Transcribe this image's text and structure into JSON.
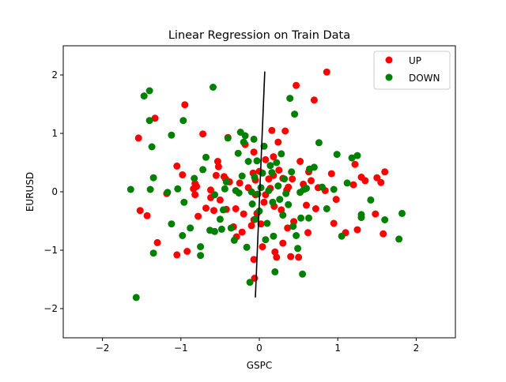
{
  "chart_data": {
    "type": "scatter",
    "title": "Linear Regression on Train Data",
    "xlabel": "GSPC",
    "ylabel": "EURUSD",
    "xlim": [
      -2.5,
      2.5
    ],
    "ylim": [
      -2.5,
      2.5
    ],
    "xticks": [
      -2,
      -1,
      0,
      1,
      2
    ],
    "yticks": [
      -2,
      -1,
      0,
      1,
      2
    ],
    "xtick_labels": [
      "−2",
      "−1",
      "0",
      "1",
      "2"
    ],
    "ytick_labels": [
      "−2",
      "−1",
      "0",
      "1",
      "2"
    ],
    "grid": false,
    "legend_position": "top-right",
    "series": [
      {
        "name": "UP",
        "color": "#ff0000",
        "points": [
          [
            -1.54,
            0.92
          ],
          [
            -1.52,
            -0.32
          ],
          [
            -1.43,
            -0.41
          ],
          [
            -1.33,
            1.26
          ],
          [
            -1.3,
            -0.87
          ],
          [
            -1.18,
            -0.03
          ],
          [
            -1.05,
            -1.08
          ],
          [
            -1.05,
            0.44
          ],
          [
            -0.98,
            0.29
          ],
          [
            -0.95,
            1.49
          ],
          [
            -0.92,
            -1.02
          ],
          [
            -0.82,
            0.14
          ],
          [
            -0.82,
            -0.05
          ],
          [
            -0.8,
            0.09
          ],
          [
            -0.78,
            -0.42
          ],
          [
            -0.72,
            0.99
          ],
          [
            -0.68,
            -0.28
          ],
          [
            -0.62,
            -0.1
          ],
          [
            -0.58,
            -0.32
          ],
          [
            -0.55,
            0.28
          ],
          [
            -0.53,
            0.52
          ],
          [
            -0.52,
            0.43
          ],
          [
            -0.5,
            -0.14
          ],
          [
            -0.45,
            0.26
          ],
          [
            -0.43,
            0.22
          ],
          [
            -0.4,
            0.93
          ],
          [
            -0.38,
            0.17
          ],
          [
            -0.33,
            -0.6
          ],
          [
            -0.3,
            -0.29
          ],
          [
            -0.25,
            0.15
          ],
          [
            -0.22,
            -0.69
          ],
          [
            -0.2,
            -0.38
          ],
          [
            -0.18,
            0.81
          ],
          [
            -0.14,
            0.07
          ],
          [
            -0.1,
            -0.58
          ],
          [
            -0.08,
            0.32
          ],
          [
            -0.07,
            0.68
          ],
          [
            -0.05,
            0.2
          ],
          [
            -0.05,
            -0.05
          ],
          [
            -0.07,
            -0.48
          ],
          [
            -0.07,
            -1.16
          ],
          [
            -0.06,
            -1.48
          ],
          [
            -0.03,
            -0.37
          ],
          [
            0.0,
            0.35
          ],
          [
            0.02,
            -0.55
          ],
          [
            0.04,
            -0.94
          ],
          [
            0.08,
            0.55
          ],
          [
            0.12,
            0.22
          ],
          [
            0.14,
            0.06
          ],
          [
            0.16,
            1.05
          ],
          [
            0.18,
            0.28
          ],
          [
            0.19,
            -0.25
          ],
          [
            0.2,
            -1.03
          ],
          [
            0.22,
            -1.12
          ],
          [
            0.24,
            0.85
          ],
          [
            0.28,
            -0.31
          ],
          [
            0.3,
            -0.88
          ],
          [
            0.33,
            1.04
          ],
          [
            0.35,
            0.03
          ],
          [
            0.36,
            -0.62
          ],
          [
            0.37,
            0.08
          ],
          [
            0.42,
            0.22
          ],
          [
            0.44,
            -0.51
          ],
          [
            0.47,
            1.82
          ],
          [
            0.5,
            -1.12
          ],
          [
            0.52,
            0.52
          ],
          [
            0.56,
            0.13
          ],
          [
            0.6,
            -0.23
          ],
          [
            0.62,
            -0.7
          ],
          [
            0.66,
            0.19
          ],
          [
            0.7,
            1.57
          ],
          [
            0.72,
            -0.29
          ],
          [
            0.75,
            0.07
          ],
          [
            0.84,
            0.02
          ],
          [
            0.86,
            2.05
          ],
          [
            0.92,
            0.31
          ],
          [
            0.95,
            -0.54
          ],
          [
            0.98,
            -0.13
          ],
          [
            1.1,
            -0.7
          ],
          [
            1.2,
            0.12
          ],
          [
            1.22,
            0.47
          ],
          [
            1.25,
            -0.65
          ],
          [
            1.3,
            0.25
          ],
          [
            1.35,
            0.19
          ],
          [
            1.48,
            -0.38
          ],
          [
            1.5,
            0.24
          ],
          [
            1.55,
            0.16
          ],
          [
            1.58,
            -0.72
          ],
          [
            1.6,
            0.34
          ],
          [
            -0.29,
            -0.77
          ],
          [
            0.18,
            0.6
          ],
          [
            0.08,
            -0.05
          ],
          [
            -0.62,
            0.03
          ],
          [
            0.25,
            0.37
          ],
          [
            0.63,
            0.34
          ],
          [
            -0.84,
            0.05
          ],
          [
            0.4,
            -1.11
          ],
          [
            0.06,
            -0.18
          ],
          [
            0.3,
            0.23
          ],
          [
            -0.42,
            -0.3
          ]
        ]
      },
      {
        "name": "DOWN",
        "color": "#008000",
        "points": [
          [
            -1.64,
            0.04
          ],
          [
            -1.57,
            -1.81
          ],
          [
            -1.47,
            1.64
          ],
          [
            -1.4,
            1.22
          ],
          [
            -1.4,
            1.73
          ],
          [
            -1.39,
            0.04
          ],
          [
            -1.37,
            0.77
          ],
          [
            -1.35,
            0.24
          ],
          [
            -1.35,
            -1.05
          ],
          [
            -1.17,
            -0.01
          ],
          [
            -1.12,
            0.97
          ],
          [
            -1.12,
            -0.55
          ],
          [
            -1.04,
            0.05
          ],
          [
            -0.98,
            -0.75
          ],
          [
            -0.97,
            1.22
          ],
          [
            -0.96,
            -0.18
          ],
          [
            -0.88,
            -0.62
          ],
          [
            -0.83,
            0.23
          ],
          [
            -0.75,
            -0.94
          ],
          [
            -0.75,
            -1.09
          ],
          [
            -0.72,
            0.38
          ],
          [
            -0.68,
            0.59
          ],
          [
            -0.63,
            -0.66
          ],
          [
            -0.59,
            1.79
          ],
          [
            -0.57,
            -0.05
          ],
          [
            -0.5,
            -0.47
          ],
          [
            -0.48,
            -0.64
          ],
          [
            -0.46,
            -0.31
          ],
          [
            -0.44,
            0.05
          ],
          [
            -0.42,
            0.17
          ],
          [
            -0.4,
            0.92
          ],
          [
            -0.36,
            -0.62
          ],
          [
            -0.32,
            -0.83
          ],
          [
            -0.3,
            0.02
          ],
          [
            -0.27,
            0.66
          ],
          [
            -0.26,
            -0.02
          ],
          [
            -0.24,
            1.02
          ],
          [
            -0.22,
            0.27
          ],
          [
            -0.2,
            0.85
          ],
          [
            -0.18,
            0.96
          ],
          [
            -0.16,
            -0.95
          ],
          [
            -0.14,
            0.52
          ],
          [
            -0.12,
            -1.55
          ],
          [
            -0.1,
            0.0
          ],
          [
            -0.09,
            -0.21
          ],
          [
            -0.07,
            0.9
          ],
          [
            -0.06,
            0.25
          ],
          [
            -0.05,
            -0.47
          ],
          [
            -0.03,
            0.53
          ],
          [
            -0.02,
            -0.04
          ],
          [
            0.0,
            -0.33
          ],
          [
            0.02,
            0.07
          ],
          [
            0.04,
            0.32
          ],
          [
            0.06,
            0.78
          ],
          [
            0.08,
            -0.82
          ],
          [
            0.1,
            -0.54
          ],
          [
            0.12,
            0.02
          ],
          [
            0.14,
            0.45
          ],
          [
            0.16,
            0.33
          ],
          [
            0.17,
            -0.18
          ],
          [
            0.18,
            -0.76
          ],
          [
            0.2,
            -1.37
          ],
          [
            0.22,
            0.5
          ],
          [
            0.24,
            0.1
          ],
          [
            0.26,
            -0.13
          ],
          [
            0.28,
            0.65
          ],
          [
            0.3,
            -0.4
          ],
          [
            0.32,
            0.22
          ],
          [
            0.34,
            -0.03
          ],
          [
            0.37,
            -0.22
          ],
          [
            0.39,
            1.6
          ],
          [
            0.41,
            0.34
          ],
          [
            0.43,
            -0.59
          ],
          [
            0.45,
            1.33
          ],
          [
            0.47,
            -0.75
          ],
          [
            0.49,
            -0.97
          ],
          [
            0.52,
            -0.01
          ],
          [
            0.53,
            -0.45
          ],
          [
            0.55,
            -1.41
          ],
          [
            0.57,
            0.04
          ],
          [
            0.6,
            0.06
          ],
          [
            0.64,
            0.39
          ],
          [
            0.7,
            0.42
          ],
          [
            0.76,
            0.84
          ],
          [
            0.8,
            0.08
          ],
          [
            0.86,
            -0.29
          ],
          [
            0.95,
            0.04
          ],
          [
            0.99,
            0.64
          ],
          [
            1.05,
            -0.76
          ],
          [
            1.12,
            0.15
          ],
          [
            1.18,
            0.58
          ],
          [
            1.25,
            0.62
          ],
          [
            1.3,
            -0.44
          ],
          [
            1.3,
            -0.39
          ],
          [
            1.42,
            -0.14
          ],
          [
            1.6,
            -0.48
          ],
          [
            1.78,
            -0.81
          ],
          [
            1.82,
            -0.37
          ],
          [
            -0.57,
            -0.68
          ],
          [
            0.63,
            -0.45
          ]
        ]
      },
      {
        "name": "",
        "kind": "line",
        "color": "#000000",
        "points": [
          [
            -0.05,
            -1.81
          ],
          [
            0.07,
            2.06
          ]
        ]
      }
    ]
  }
}
